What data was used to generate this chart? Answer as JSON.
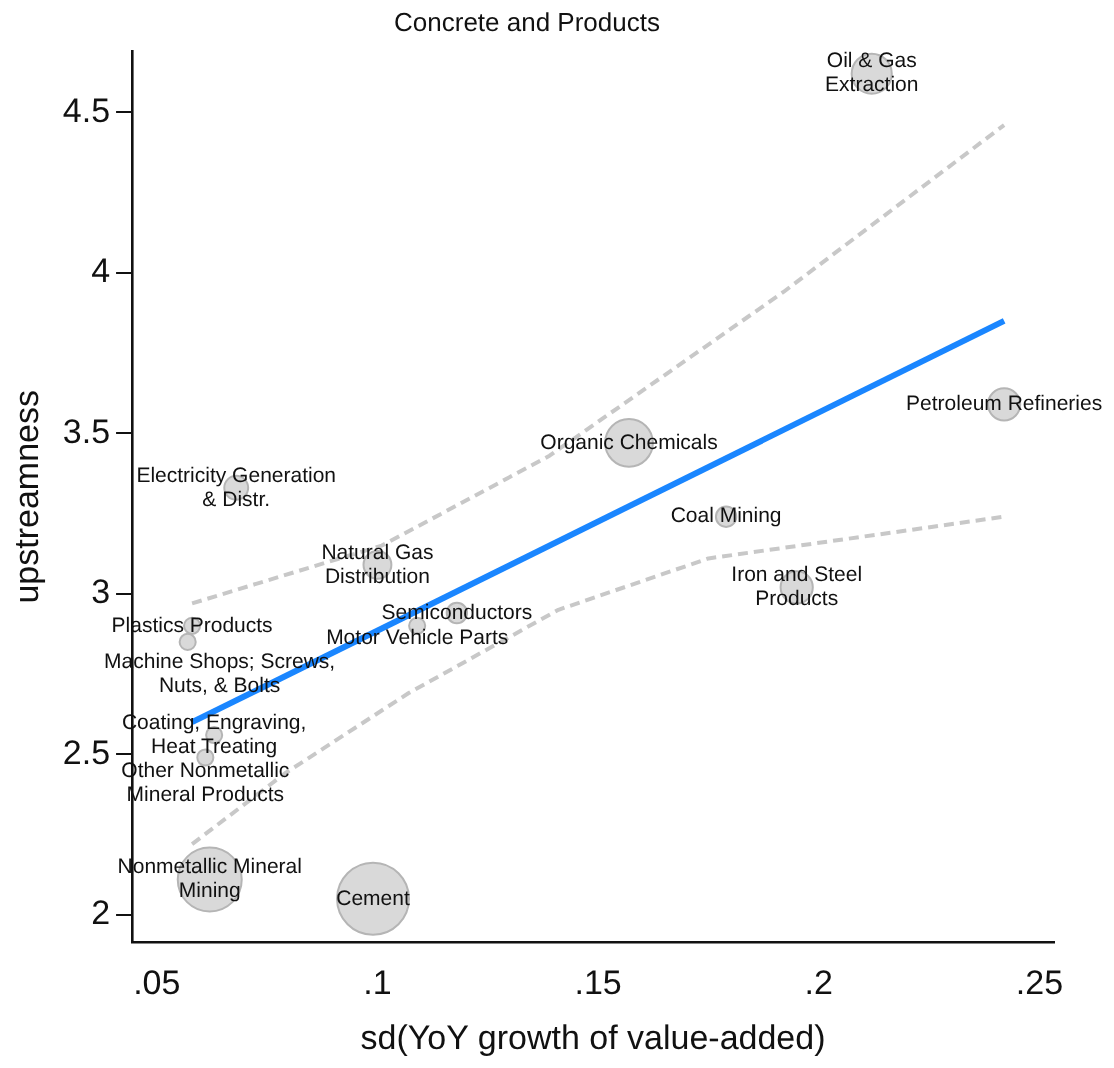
{
  "chart_data": {
    "type": "scatter",
    "title": "Concrete and Products",
    "xlabel": "sd(YoY growth of value-added)",
    "ylabel": "upstreamness",
    "xlim": [
      0.0444,
      0.2533
    ],
    "ylim": [
      1.914,
      4.69
    ],
    "xticks": [
      {
        "value": 0.05,
        "label": ".05"
      },
      {
        "value": 0.1,
        "label": ".1"
      },
      {
        "value": 0.15,
        "label": ".15"
      },
      {
        "value": 0.2,
        "label": ".2"
      },
      {
        "value": 0.25,
        "label": ".25"
      }
    ],
    "yticks": [
      2,
      2.5,
      3,
      3.5,
      4,
      4.5
    ],
    "grid": false,
    "legend": false,
    "marker": "circle",
    "series": [
      {
        "type": "bubble",
        "color": "#d9d9d9",
        "x": [
          0.212,
          0.242,
          0.157,
          0.068,
          0.179,
          0.1,
          0.195,
          0.118,
          0.109,
          0.058,
          0.057,
          0.063,
          0.061,
          0.062,
          0.099
        ],
        "values": [
          4.62,
          3.59,
          3.47,
          3.33,
          3.24,
          3.09,
          3.02,
          2.94,
          2.9,
          2.9,
          2.85,
          2.56,
          2.49,
          2.11,
          2.05
        ],
        "sizes": [
          0.31,
          0.2,
          0.44,
          0.11,
          0.08,
          0.15,
          0.2,
          0.08,
          0.05,
          0.05,
          0.05,
          0.05,
          0.05,
          0.79,
          1
        ]
      },
      {
        "type": "line",
        "color": "#1a86ff",
        "line_style": "solid",
        "marker": "none",
        "x": [
          0.058,
          0.242
        ],
        "values": [
          2.6,
          3.85
        ]
      },
      {
        "type": "line",
        "color": "#c8c8c8",
        "line_style": "dashed",
        "marker": "none",
        "x": [
          0.058,
          0.101,
          0.139,
          0.192,
          0.242
        ],
        "values": [
          2.97,
          3.15,
          3.43,
          3.94,
          4.46
        ]
      },
      {
        "type": "line",
        "color": "#c8c8c8",
        "line_style": "dashed",
        "marker": "none",
        "x": [
          0.058,
          0.079,
          0.107,
          0.141,
          0.175,
          0.242
        ],
        "values": [
          2.22,
          2.44,
          2.69,
          2.95,
          3.11,
          3.24
        ]
      }
    ],
    "annotations": [
      {
        "text": "Oil & Gas\nExtraction",
        "x": 0.212,
        "y": 4.62
      },
      {
        "text": "Petroleum Refineries",
        "x": 0.242,
        "y": 3.59
      },
      {
        "text": "Organic Chemicals",
        "x": 0.157,
        "y": 3.47
      },
      {
        "text": "Electricity Generation\n& Distr.",
        "x": 0.068,
        "y": 3.33
      },
      {
        "text": "Coal Mining",
        "x": 0.179,
        "y": 3.24
      },
      {
        "text": "Natural Gas\nDistribution",
        "x": 0.1,
        "y": 3.09
      },
      {
        "text": "Iron and Steel\nProducts",
        "x": 0.195,
        "y": 3.02
      },
      {
        "text": "Semiconductors",
        "x": 0.118,
        "y": 2.94
      },
      {
        "text": "Motor Vehicle Parts",
        "x": 0.109,
        "y": 2.9
      },
      {
        "text": "Plastics Products",
        "x": 0.058,
        "y": 2.9
      },
      {
        "text": "Machine Shops; Screws,\nNuts, & Bolts",
        "x": 0.057,
        "y": 2.85
      },
      {
        "text": "Coating, Engraving,\nHeat Treating",
        "x": 0.063,
        "y": 2.56
      },
      {
        "text": "Other Nonmetallic\nMineral Products",
        "x": 0.061,
        "y": 2.49
      },
      {
        "text": "Nonmetallic Mineral\nMining",
        "x": 0.062,
        "y": 2.11
      },
      {
        "text": "Cement",
        "x": 0.099,
        "y": 2.05
      }
    ]
  }
}
